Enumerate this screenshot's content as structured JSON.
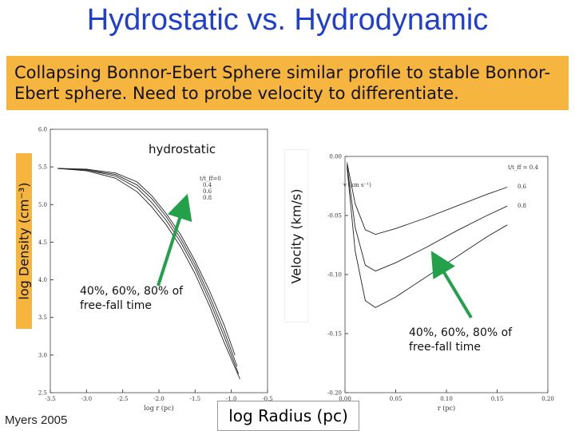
{
  "slide": {
    "title": "Hydrostatic vs. Hydrodynamic",
    "banner_text": "Collapsing Bonnor-Ebert Sphere similar profile to stable Bonnor-Ebert sphere.  Need to probe velocity to differentiate.",
    "left_ylabel": "log Density (cm⁻³)",
    "right_ylabel": "Velocity (km/s)",
    "hydrostatic_label": "hydrostatic",
    "left_annotation": "40%, 60%, 80% of free-fall time",
    "right_annotation": "40%, 60%, 80% of free-fall time",
    "citation": "Myers 2005",
    "xlabel_box": "log Radius (pc)",
    "colors": {
      "title": "#1f3fd1",
      "banner": "#f5b53f",
      "arrow": "#23a04a"
    }
  },
  "chart_data": [
    {
      "type": "line",
      "xlabel": "log r (pc)",
      "ylabel": "",
      "xlim": [
        -3.5,
        -0.5
      ],
      "ylim": [
        2.5,
        6.0
      ],
      "x_ticks": [
        "-3.5",
        "-3.0",
        "-2.5",
        "-2.0",
        "-1.5",
        "-1.0",
        "-0.5"
      ],
      "y_ticks": [
        "2.5",
        "3.0",
        "3.5",
        "4.0",
        "4.5",
        "5.0",
        "5.5",
        "6.0"
      ],
      "legend_title": "t/t_ff=0",
      "legend_entries": [
        "0.4",
        "0.6",
        "0.8"
      ],
      "series": [
        {
          "name": "0",
          "x": [
            -3.4,
            -3.0,
            -2.6,
            -2.3,
            -2.1,
            -1.9,
            -1.7,
            -1.5,
            -1.3,
            -1.1,
            -0.95
          ],
          "y": [
            5.48,
            5.47,
            5.42,
            5.3,
            5.12,
            4.88,
            4.6,
            4.25,
            3.85,
            3.4,
            3.0
          ]
        },
        {
          "name": "0.4",
          "x": [
            -3.4,
            -3.0,
            -2.6,
            -2.3,
            -2.1,
            -1.9,
            -1.7,
            -1.5,
            -1.3,
            -1.1,
            -0.92
          ],
          "y": [
            5.48,
            5.46,
            5.4,
            5.26,
            5.08,
            4.84,
            4.55,
            4.2,
            3.78,
            3.32,
            2.85
          ]
        },
        {
          "name": "0.6",
          "x": [
            -3.4,
            -3.0,
            -2.6,
            -2.3,
            -2.1,
            -1.9,
            -1.7,
            -1.5,
            -1.3,
            -1.1,
            -0.9
          ],
          "y": [
            5.48,
            5.46,
            5.38,
            5.22,
            5.03,
            4.79,
            4.5,
            4.15,
            3.72,
            3.25,
            2.75
          ]
        },
        {
          "name": "0.8",
          "x": [
            -3.4,
            -3.0,
            -2.6,
            -2.3,
            -2.1,
            -1.9,
            -1.7,
            -1.5,
            -1.3,
            -1.1,
            -0.88
          ],
          "y": [
            5.48,
            5.45,
            5.35,
            5.17,
            4.97,
            4.73,
            4.44,
            4.08,
            3.65,
            3.17,
            2.68
          ]
        }
      ]
    },
    {
      "type": "line",
      "xlabel": "r (pc)",
      "ylabel": "v (km s⁻¹)",
      "xlim": [
        0.0,
        0.2
      ],
      "ylim": [
        -0.2,
        0.0
      ],
      "x_ticks": [
        "0.00",
        "0.05",
        "0.10",
        "0.15",
        "0.20"
      ],
      "y_ticks": [
        "0.00",
        "-0.05",
        "-0.10",
        "-0.15",
        "-0.20"
      ],
      "legend_title": "t/t_ff = 0.4",
      "legend_entries": [
        "0.6",
        "0.8"
      ],
      "series": [
        {
          "name": "0.4",
          "x": [
            0.002,
            0.01,
            0.02,
            0.03,
            0.05,
            0.08,
            0.11,
            0.14,
            0.16
          ],
          "y": [
            -0.005,
            -0.04,
            -0.062,
            -0.066,
            -0.061,
            -0.052,
            -0.042,
            -0.032,
            -0.026
          ]
        },
        {
          "name": "0.6",
          "x": [
            0.002,
            0.01,
            0.02,
            0.03,
            0.05,
            0.08,
            0.11,
            0.14,
            0.16
          ],
          "y": [
            -0.007,
            -0.06,
            -0.092,
            -0.097,
            -0.09,
            -0.077,
            -0.063,
            -0.05,
            -0.042
          ]
        },
        {
          "name": "0.8",
          "x": [
            0.002,
            0.01,
            0.02,
            0.03,
            0.05,
            0.08,
            0.11,
            0.14,
            0.16
          ],
          "y": [
            -0.009,
            -0.08,
            -0.122,
            -0.128,
            -0.119,
            -0.102,
            -0.085,
            -0.068,
            -0.058
          ]
        }
      ]
    }
  ]
}
